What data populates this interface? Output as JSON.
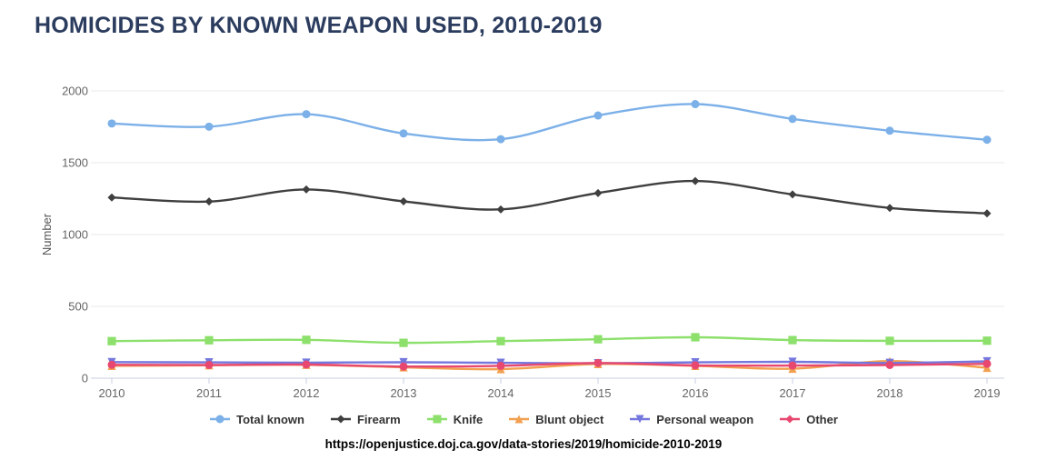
{
  "title": "HOMICIDES BY KNOWN WEAPON USED, 2010-2019",
  "source_url": "https://openjustice.doj.ca.gov/data-stories/2019/homicide-2010-2019",
  "colors": {
    "title_text": "#2b3c5e",
    "axis_text": "#666666",
    "ylabel_text": "#555555",
    "grid_line": "#e8e8e8",
    "axis_line": "#c9cfe3",
    "legend_text": "#333333"
  },
  "chart_data": {
    "type": "line",
    "title": "HOMICIDES BY KNOWN WEAPON USED, 2010-2019",
    "xlabel": "",
    "ylabel": "Number",
    "x": [
      2010,
      2011,
      2012,
      2013,
      2014,
      2015,
      2016,
      2017,
      2018,
      2019
    ],
    "ylim": [
      0,
      2000
    ],
    "yticks": [
      0,
      500,
      1000,
      1500,
      2000
    ],
    "grid": true,
    "legend_position": "bottom",
    "series": [
      {
        "name": "Total known",
        "color": "#7cb0e8",
        "marker": "circle",
        "values": [
          1773,
          1751,
          1838,
          1704,
          1664,
          1829,
          1908,
          1805,
          1723,
          1660
        ]
      },
      {
        "name": "Firearm",
        "color": "#3f3f3f",
        "marker": "diamond",
        "values": [
          1258,
          1230,
          1314,
          1231,
          1175,
          1289,
          1373,
          1279,
          1185,
          1147
        ]
      },
      {
        "name": "Knife",
        "color": "#8ce06b",
        "marker": "square",
        "values": [
          258,
          264,
          267,
          246,
          258,
          271,
          285,
          265,
          260,
          261
        ]
      },
      {
        "name": "Blunt object",
        "color": "#f2a050",
        "marker": "triangle-up",
        "values": [
          86,
          90,
          93,
          76,
          63,
          99,
          86,
          66,
          119,
          73
        ]
      },
      {
        "name": "Personal weapon",
        "color": "#7477dd",
        "marker": "triangle-down",
        "values": [
          112,
          110,
          108,
          111,
          107,
          104,
          110,
          114,
          106,
          117
        ]
      },
      {
        "name": "Other",
        "color": "#e8486f",
        "marker": "circle",
        "values": [
          93,
          92,
          95,
          81,
          86,
          106,
          89,
          88,
          92,
          100
        ]
      }
    ]
  }
}
